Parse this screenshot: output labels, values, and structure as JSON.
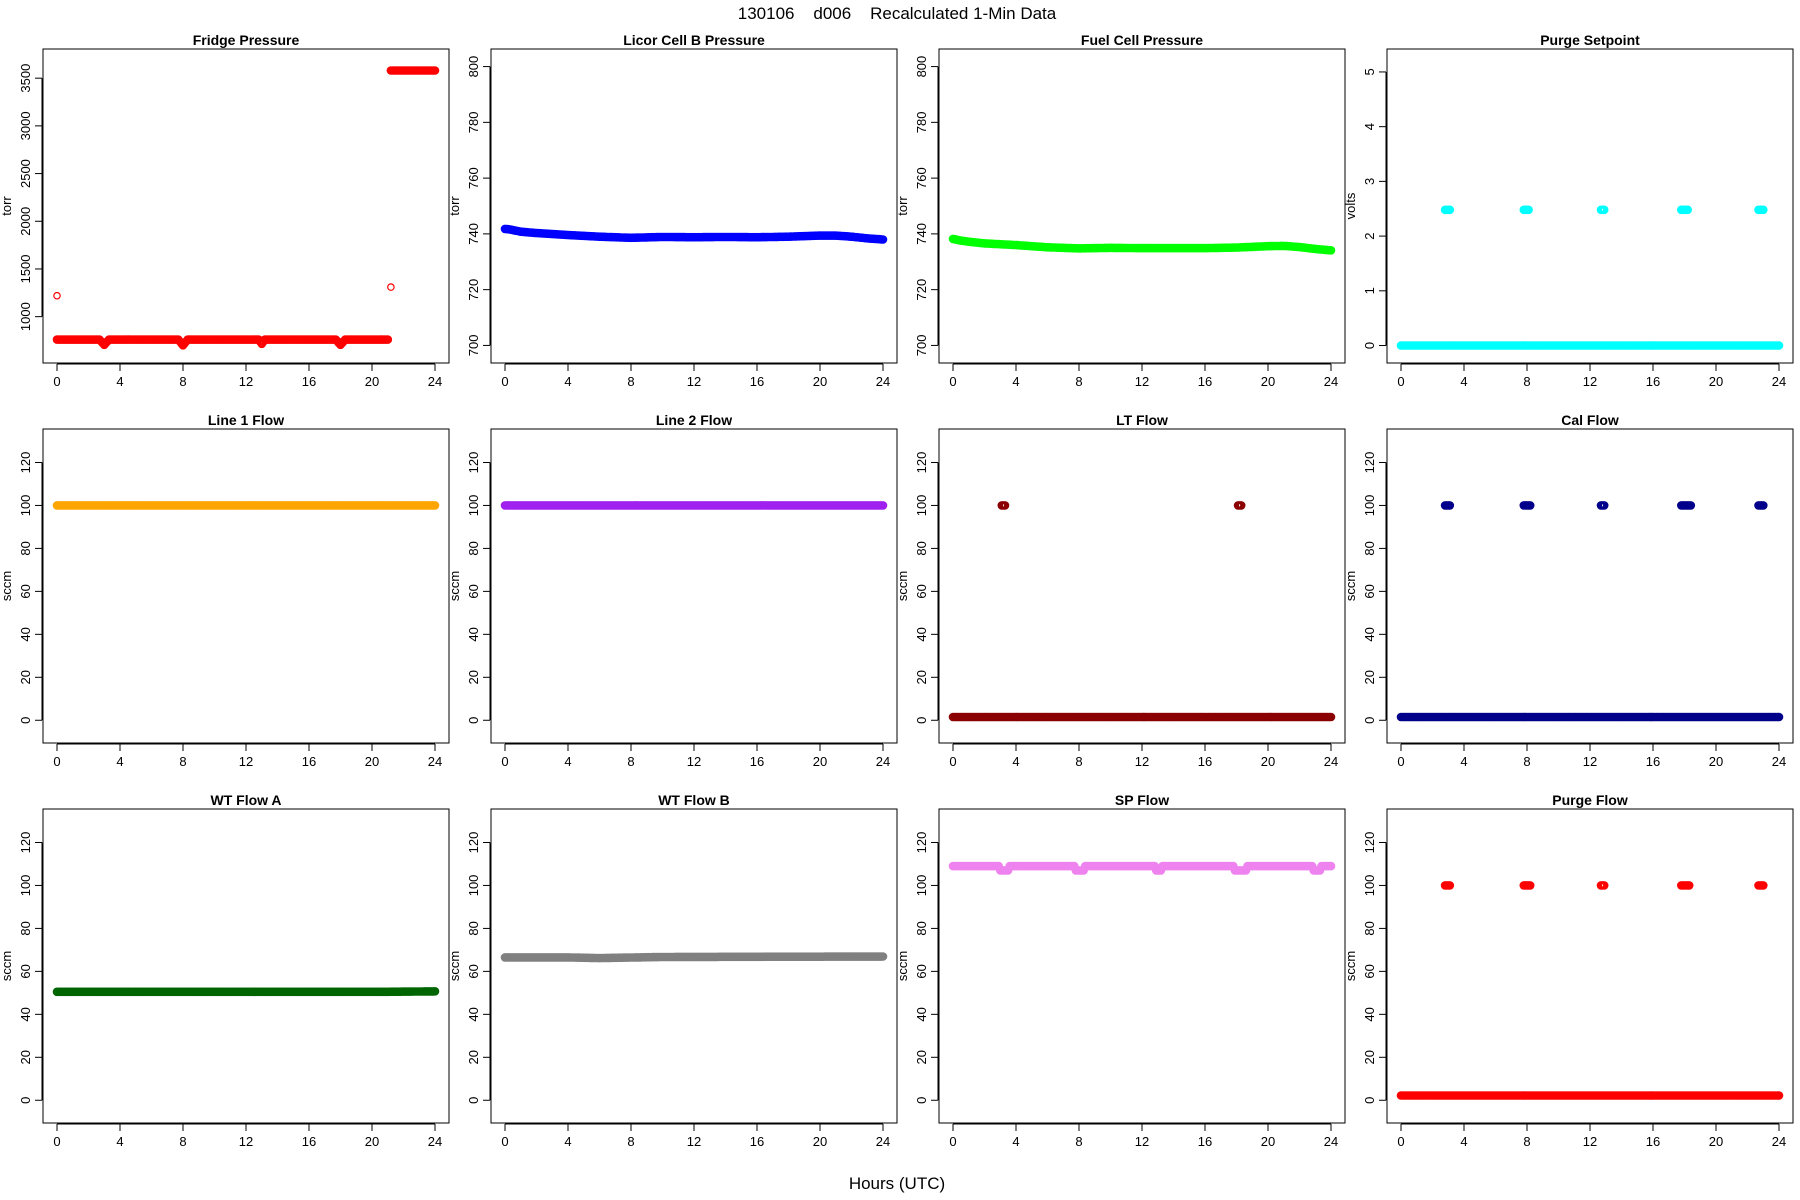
{
  "figure": {
    "title": "130106    d006    Recalculated 1-Min Data",
    "xlabel": "Hours (UTC)"
  },
  "chart_data": [
    {
      "type": "scatter",
      "title": "Fridge Pressure",
      "ylabel": "torr",
      "color": "#ff0000",
      "xlim": [
        0,
        24
      ],
      "ylim": [
        640,
        3680
      ],
      "xticks": [
        0,
        4,
        8,
        12,
        16,
        20,
        24
      ],
      "yticks": [
        1000,
        1500,
        2000,
        2500,
        3000,
        3500
      ],
      "segments": [
        {
          "x": [
            0.0,
            2.7,
            3.0,
            3.3,
            7.7,
            8.0,
            8.3,
            12.8,
            13.0,
            13.2,
            17.7,
            18.0,
            18.3,
            21.0
          ],
          "y": [
            760,
            760,
            705,
            760,
            760,
            700,
            760,
            760,
            715,
            760,
            760,
            705,
            760,
            760
          ]
        },
        {
          "x": [
            21.2,
            24.0
          ],
          "y": [
            3580,
            3580
          ]
        }
      ],
      "outliers": [
        {
          "x": 0.0,
          "y": 1220
        },
        {
          "x": 21.2,
          "y": 1310
        }
      ]
    },
    {
      "type": "scatter",
      "title": "Licor Cell B Pressure",
      "ylabel": "torr",
      "color": "#0000ff",
      "xlim": [
        0,
        24
      ],
      "ylim": [
        698,
        802
      ],
      "xticks": [
        0,
        4,
        8,
        12,
        16,
        20,
        24
      ],
      "yticks": [
        700,
        720,
        740,
        760,
        780,
        800
      ],
      "segments": [
        {
          "x": [
            0,
            0.3,
            1,
            2,
            4,
            6,
            8,
            10,
            12,
            14,
            16,
            18,
            20,
            21,
            22,
            23,
            24
          ],
          "y": [
            741.8,
            741.6,
            740.8,
            740.3,
            739.6,
            739.0,
            738.6,
            738.9,
            738.8,
            738.9,
            738.8,
            739.0,
            739.4,
            739.4,
            739.0,
            738.4,
            738.0
          ]
        }
      ],
      "outliers": []
    },
    {
      "type": "scatter",
      "title": "Fuel Cell Pressure",
      "ylabel": "torr",
      "color": "#00ff00",
      "xlim": [
        0,
        24
      ],
      "ylim": [
        698,
        802
      ],
      "xticks": [
        0,
        4,
        8,
        12,
        16,
        20,
        24
      ],
      "yticks": [
        700,
        720,
        740,
        760,
        780,
        800
      ],
      "segments": [
        {
          "x": [
            0,
            0.5,
            1,
            2,
            4,
            6,
            8,
            10,
            12,
            14,
            16,
            18,
            20,
            21,
            22,
            23,
            24
          ],
          "y": [
            738.2,
            737.6,
            737.2,
            736.6,
            736.0,
            735.2,
            734.8,
            735.0,
            734.9,
            734.9,
            734.9,
            735.1,
            735.6,
            735.7,
            735.3,
            734.6,
            734.1
          ]
        }
      ],
      "outliers": []
    },
    {
      "type": "scatter",
      "title": "Purge Setpoint",
      "ylabel": "volts",
      "color": "#00ffff",
      "xlim": [
        0,
        24
      ],
      "ylim": [
        -0.1,
        5.2
      ],
      "xticks": [
        0,
        4,
        8,
        12,
        16,
        20,
        24
      ],
      "yticks": [
        0,
        1,
        2,
        3,
        4,
        5
      ],
      "segments": [
        {
          "x": [
            0,
            24
          ],
          "y": [
            0,
            0
          ]
        },
        {
          "x": [
            2.8,
            3.1
          ],
          "y": [
            2.48,
            2.48
          ]
        },
        {
          "x": [
            7.8,
            8.1
          ],
          "y": [
            2.48,
            2.48
          ]
        },
        {
          "x": [
            12.7,
            12.9
          ],
          "y": [
            2.48,
            2.48
          ]
        },
        {
          "x": [
            17.8,
            18.2
          ],
          "y": [
            2.48,
            2.48
          ]
        },
        {
          "x": [
            22.7,
            23.0
          ],
          "y": [
            2.48,
            2.48
          ]
        }
      ],
      "outliers": []
    },
    {
      "type": "scatter",
      "title": "Line 1 Flow",
      "ylabel": "sccm",
      "color": "#ffa500",
      "xlim": [
        0,
        24
      ],
      "ylim": [
        -5,
        130
      ],
      "xticks": [
        0,
        4,
        8,
        12,
        16,
        20,
        24
      ],
      "yticks": [
        0,
        20,
        40,
        60,
        80,
        100,
        120
      ],
      "segments": [
        {
          "x": [
            0,
            24
          ],
          "y": [
            100,
            100
          ]
        }
      ],
      "outliers": []
    },
    {
      "type": "scatter",
      "title": "Line 2 Flow",
      "ylabel": "sccm",
      "color": "#a020f0",
      "xlim": [
        0,
        24
      ],
      "ylim": [
        -5,
        130
      ],
      "xticks": [
        0,
        4,
        8,
        12,
        16,
        20,
        24
      ],
      "yticks": [
        0,
        20,
        40,
        60,
        80,
        100,
        120
      ],
      "segments": [
        {
          "x": [
            0,
            24
          ],
          "y": [
            100,
            100
          ]
        }
      ],
      "outliers": []
    },
    {
      "type": "scatter",
      "title": "LT Flow",
      "ylabel": "sccm",
      "color": "#8b0000",
      "xlim": [
        0,
        24
      ],
      "ylim": [
        -5,
        130
      ],
      "xticks": [
        0,
        4,
        8,
        12,
        16,
        20,
        24
      ],
      "yticks": [
        0,
        20,
        40,
        60,
        80,
        100,
        120
      ],
      "segments": [
        {
          "x": [
            0,
            24
          ],
          "y": [
            1.5,
            1.5
          ]
        },
        {
          "x": [
            3.1,
            3.3
          ],
          "y": [
            100,
            100
          ]
        },
        {
          "x": [
            18.1,
            18.3
          ],
          "y": [
            100,
            100
          ]
        }
      ],
      "outliers": []
    },
    {
      "type": "scatter",
      "title": "Cal Flow",
      "ylabel": "sccm",
      "color": "#00008b",
      "xlim": [
        0,
        24
      ],
      "ylim": [
        -5,
        130
      ],
      "xticks": [
        0,
        4,
        8,
        12,
        16,
        20,
        24
      ],
      "yticks": [
        0,
        20,
        40,
        60,
        80,
        100,
        120
      ],
      "segments": [
        {
          "x": [
            0,
            24
          ],
          "y": [
            1.5,
            1.5
          ]
        },
        {
          "x": [
            2.8,
            3.1
          ],
          "y": [
            100,
            100
          ]
        },
        {
          "x": [
            7.8,
            8.2
          ],
          "y": [
            100,
            100
          ]
        },
        {
          "x": [
            12.7,
            12.9
          ],
          "y": [
            100,
            100
          ]
        },
        {
          "x": [
            17.8,
            18.4
          ],
          "y": [
            100,
            100
          ]
        },
        {
          "x": [
            22.7,
            23.0
          ],
          "y": [
            100,
            100
          ]
        }
      ],
      "outliers": []
    },
    {
      "type": "scatter",
      "title": "WT Flow A",
      "ylabel": "sccm",
      "color": "#006400",
      "xlim": [
        0,
        24
      ],
      "ylim": [
        -5,
        130
      ],
      "xticks": [
        0,
        4,
        8,
        12,
        16,
        20,
        24
      ],
      "yticks": [
        0,
        20,
        40,
        60,
        80,
        100,
        120
      ],
      "segments": [
        {
          "x": [
            0,
            21,
            24
          ],
          "y": [
            50.5,
            50.5,
            50.7
          ]
        }
      ],
      "outliers": []
    },
    {
      "type": "scatter",
      "title": "WT Flow B",
      "ylabel": "sccm",
      "color": "#808080",
      "xlim": [
        0,
        24
      ],
      "ylim": [
        -5,
        130
      ],
      "xticks": [
        0,
        4,
        8,
        12,
        16,
        20,
        24
      ],
      "yticks": [
        0,
        20,
        40,
        60,
        80,
        100,
        120
      ],
      "segments": [
        {
          "x": [
            0,
            4,
            6,
            10,
            16,
            24
          ],
          "y": [
            66.5,
            66.5,
            66.2,
            66.7,
            66.8,
            66.9
          ]
        }
      ],
      "outliers": []
    },
    {
      "type": "scatter",
      "title": "SP Flow",
      "ylabel": "sccm",
      "color": "#ee82ee",
      "xlim": [
        0,
        24
      ],
      "ylim": [
        -5,
        130
      ],
      "xticks": [
        0,
        4,
        8,
        12,
        16,
        20,
        24
      ],
      "yticks": [
        0,
        20,
        40,
        60,
        80,
        100,
        120
      ],
      "segments": [
        {
          "x": [
            0,
            2.9,
            3.0,
            3.5,
            3.6,
            7.7,
            7.8,
            8.3,
            8.4,
            12.8,
            12.9,
            13.2,
            13.3,
            17.8,
            17.9,
            18.6,
            18.7,
            22.8,
            22.9,
            23.3,
            23.4,
            24
          ],
          "y": [
            109,
            109,
            107,
            107,
            109,
            109,
            107,
            107,
            109,
            109,
            107,
            107,
            109,
            109,
            107,
            107,
            109,
            109,
            107,
            107,
            109,
            109
          ]
        }
      ],
      "outliers": []
    },
    {
      "type": "scatter",
      "title": "Purge Flow",
      "ylabel": "sccm",
      "color": "#ff0000",
      "xlim": [
        0,
        24
      ],
      "ylim": [
        -5,
        130
      ],
      "xticks": [
        0,
        4,
        8,
        12,
        16,
        20,
        24
      ],
      "yticks": [
        0,
        20,
        40,
        60,
        80,
        100,
        120
      ],
      "segments": [
        {
          "x": [
            0,
            24
          ],
          "y": [
            2.2,
            2.2
          ]
        },
        {
          "x": [
            2.8,
            3.1
          ],
          "y": [
            100,
            100
          ]
        },
        {
          "x": [
            7.8,
            8.2
          ],
          "y": [
            100,
            100
          ]
        },
        {
          "x": [
            12.7,
            12.9
          ],
          "y": [
            100,
            100
          ]
        },
        {
          "x": [
            17.8,
            18.3
          ],
          "y": [
            100,
            100
          ]
        },
        {
          "x": [
            22.7,
            23.0
          ],
          "y": [
            100,
            100
          ]
        }
      ],
      "outliers": []
    }
  ]
}
